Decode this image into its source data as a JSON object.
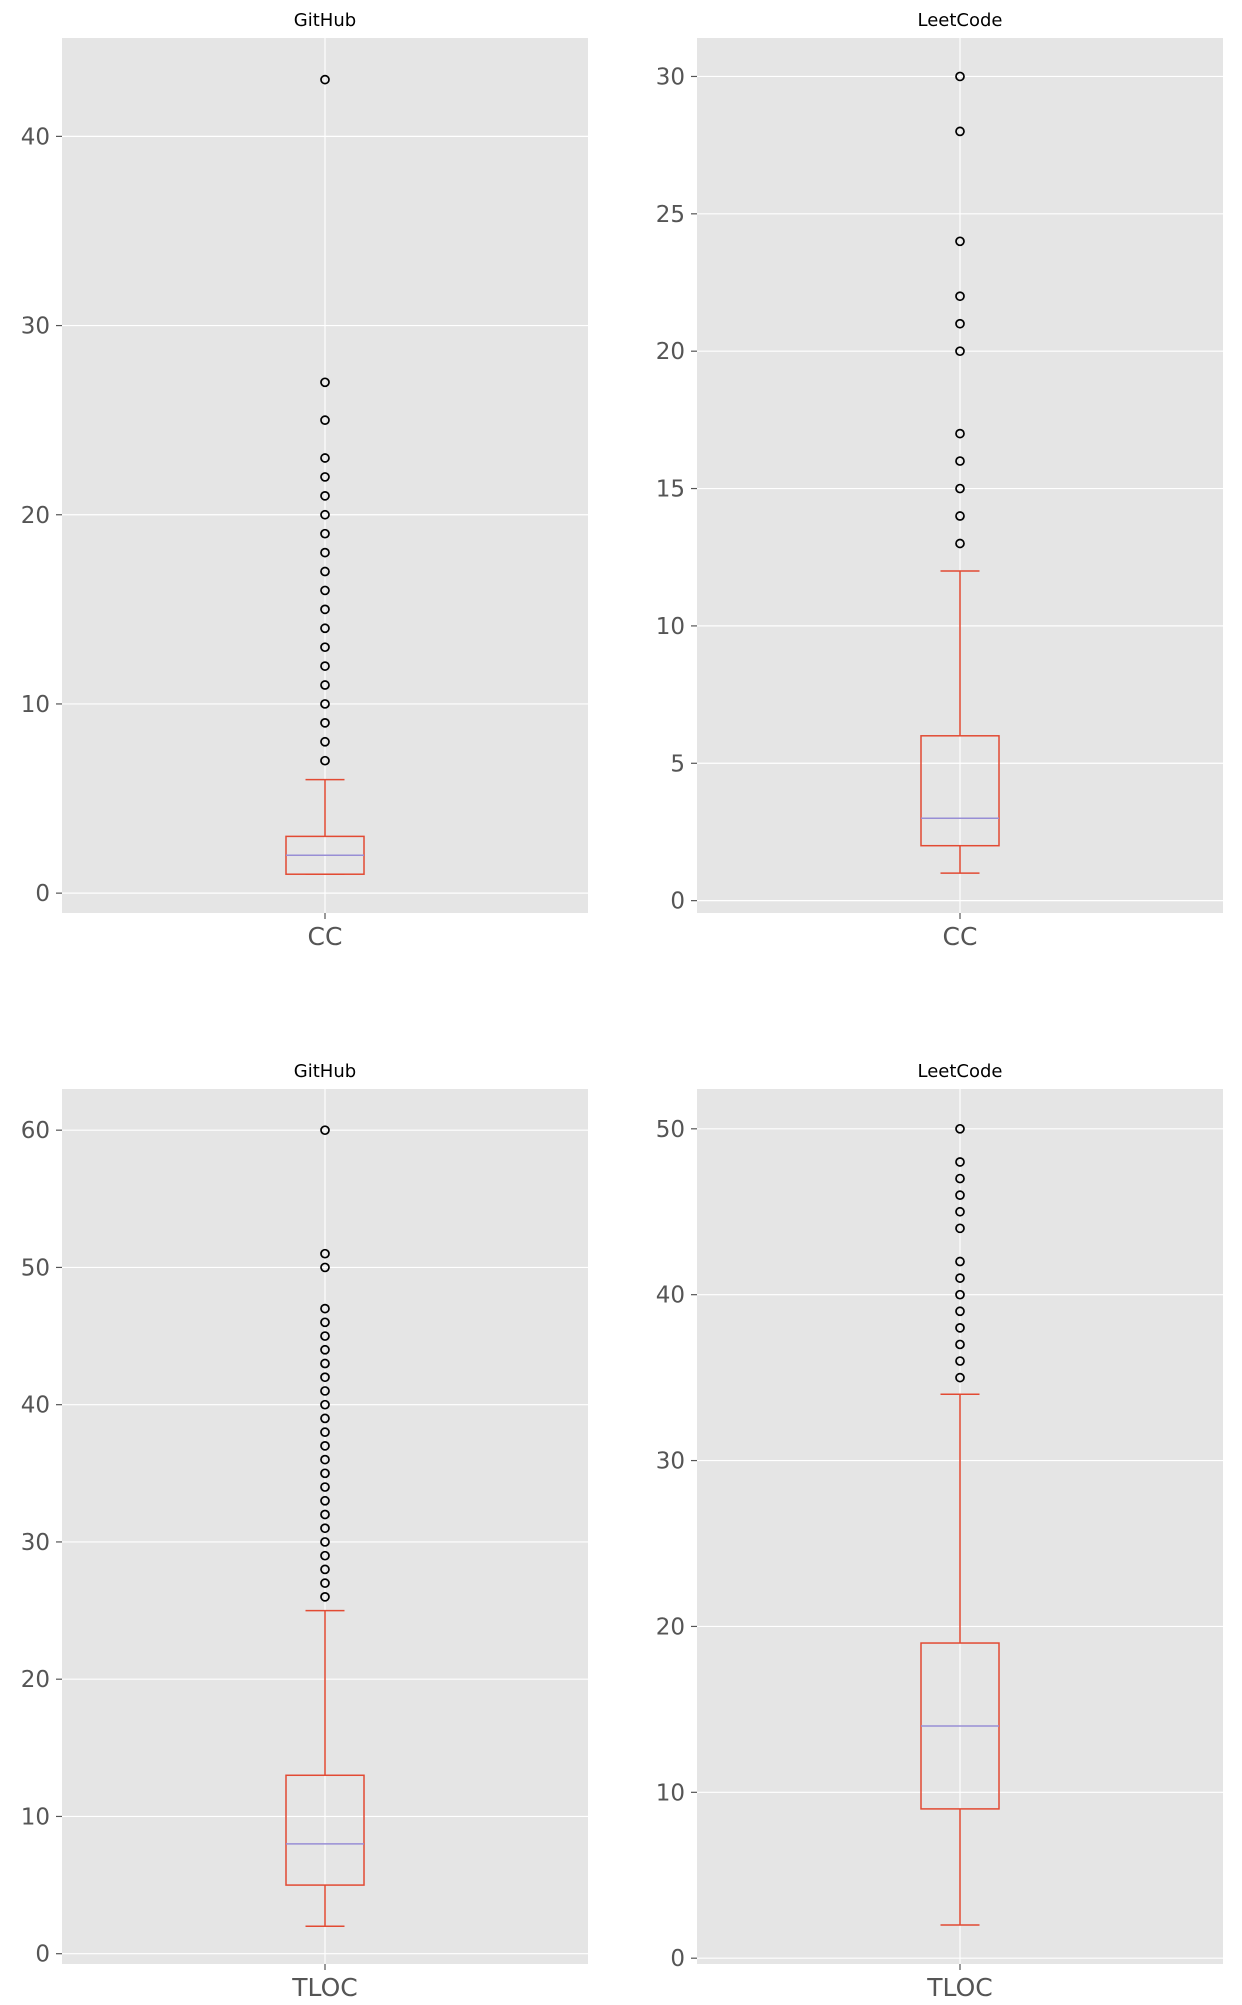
{
  "chart_data": [
    {
      "type": "box",
      "title": "GitHub",
      "categories": [
        "CC"
      ],
      "ylim": [
        -1.05,
        45.2
      ],
      "yticks": [
        0,
        10,
        20,
        30,
        40
      ],
      "grid": true,
      "box": {
        "whisker_low": 1,
        "q1": 1,
        "median": 2,
        "q3": 3,
        "whisker_high": 6
      },
      "outliers": [
        7,
        8,
        9,
        10,
        11,
        12,
        13,
        14,
        15,
        16,
        17,
        18,
        19,
        20,
        21,
        22,
        23,
        25,
        27,
        43
      ]
    },
    {
      "type": "box",
      "title": "LeetCode",
      "categories": [
        "CC"
      ],
      "ylim": [
        -0.45,
        31.4
      ],
      "yticks": [
        0,
        5,
        10,
        15,
        20,
        25,
        30
      ],
      "grid": true,
      "box": {
        "whisker_low": 1,
        "q1": 2,
        "median": 3,
        "q3": 6,
        "whisker_high": 12
      },
      "outliers": [
        13,
        14,
        15,
        16,
        17,
        20,
        21,
        22,
        24,
        28,
        30
      ]
    },
    {
      "type": "box",
      "title": "GitHub",
      "categories": [
        "TLOC"
      ],
      "ylim": [
        -0.75,
        63.0
      ],
      "yticks": [
        0,
        10,
        20,
        30,
        40,
        50,
        60
      ],
      "grid": true,
      "box": {
        "whisker_low": 2,
        "q1": 5,
        "median": 8,
        "q3": 13,
        "whisker_high": 25
      },
      "outliers": [
        26,
        27,
        28,
        29,
        30,
        31,
        32,
        33,
        34,
        35,
        36,
        37,
        38,
        39,
        40,
        41,
        42,
        43,
        44,
        45,
        46,
        47,
        50,
        51,
        60
      ]
    },
    {
      "type": "box",
      "title": "LeetCode",
      "categories": [
        "TLOC"
      ],
      "ylim": [
        -0.35,
        52.4
      ],
      "yticks": [
        0,
        10,
        20,
        30,
        40,
        50
      ],
      "grid": true,
      "box": {
        "whisker_low": 2,
        "q1": 9,
        "median": 14,
        "q3": 19,
        "whisker_high": 34
      },
      "outliers": [
        35,
        36,
        37,
        38,
        39,
        40,
        41,
        42,
        44,
        45,
        46,
        47,
        48,
        50
      ]
    }
  ],
  "colors": {
    "plot_background": "#e5e5e5",
    "grid": "#ffffff",
    "box": "#e24a33",
    "median": "#988ed5",
    "outlier_edge": "#000000",
    "tick_text": "#555555"
  }
}
